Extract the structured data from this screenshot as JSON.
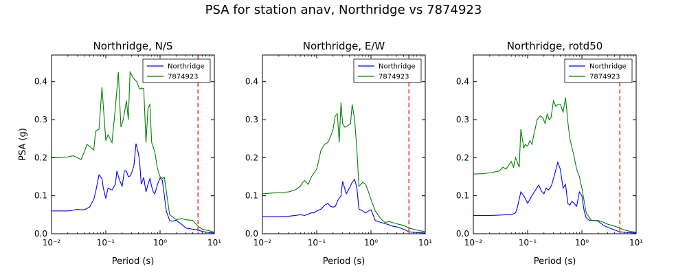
{
  "suptitle": "PSA for station anav, Northridge vs 7874923",
  "colors": {
    "series1": "#0000ff",
    "series2": "#008000",
    "marker": "#ff0000",
    "axes": "#000000"
  },
  "chart_data": [
    {
      "type": "line",
      "title": "Northridge, N/S",
      "xlabel": "Period (s)",
      "ylabel": "PSA (g)",
      "xscale": "log",
      "xlim": [
        0.01,
        10
      ],
      "ylim": [
        0,
        0.47
      ],
      "xticks": [
        0.01,
        0.1,
        1,
        10
      ],
      "xtick_labels": [
        "10⁻²",
        "10⁻¹",
        "10⁰",
        "10¹"
      ],
      "yticks": [
        0.0,
        0.1,
        0.2,
        0.3,
        0.4
      ],
      "ytick_labels": [
        "0.0",
        "0.1",
        "0.2",
        "0.3",
        "0.4"
      ],
      "legend_position": "top-right",
      "vline": {
        "x": 5,
        "style": "dashed",
        "color": "#ff0000"
      },
      "series": [
        {
          "name": "Northridge",
          "color": "#0000ff",
          "x": [
            0.01,
            0.02,
            0.025,
            0.03,
            0.035,
            0.04,
            0.05,
            0.06,
            0.065,
            0.075,
            0.085,
            0.09,
            0.1,
            0.11,
            0.13,
            0.15,
            0.16,
            0.18,
            0.2,
            0.22,
            0.24,
            0.26,
            0.28,
            0.3,
            0.33,
            0.36,
            0.4,
            0.42,
            0.45,
            0.5,
            0.55,
            0.6,
            0.65,
            0.7,
            0.75,
            0.8,
            0.9,
            1.0,
            1.1,
            1.2,
            1.3,
            1.5,
            1.7,
            2.0,
            2.2,
            2.5,
            3.0,
            4.0,
            5.0,
            6.0,
            8.0,
            10.0
          ],
          "y": [
            0.06,
            0.06,
            0.062,
            0.064,
            0.063,
            0.063,
            0.07,
            0.09,
            0.11,
            0.155,
            0.145,
            0.12,
            0.093,
            0.12,
            0.115,
            0.13,
            0.165,
            0.14,
            0.125,
            0.165,
            0.165,
            0.15,
            0.152,
            0.16,
            0.18,
            0.237,
            0.21,
            0.19,
            0.13,
            0.148,
            0.11,
            0.13,
            0.145,
            0.124,
            0.11,
            0.105,
            0.13,
            0.147,
            0.14,
            0.1,
            0.06,
            0.035,
            0.033,
            0.036,
            0.03,
            0.025,
            0.015,
            0.012,
            0.01,
            0.006,
            0.003,
            0.002
          ]
        },
        {
          "name": "7874923",
          "color": "#008000",
          "x": [
            0.01,
            0.015,
            0.02,
            0.025,
            0.03,
            0.035,
            0.04,
            0.045,
            0.05,
            0.06,
            0.065,
            0.075,
            0.085,
            0.1,
            0.11,
            0.13,
            0.15,
            0.17,
            0.19,
            0.21,
            0.24,
            0.26,
            0.28,
            0.32,
            0.37,
            0.42,
            0.45,
            0.5,
            0.55,
            0.6,
            0.65,
            0.7,
            0.8,
            0.9,
            1.0,
            1.1,
            1.2,
            1.5,
            2.0,
            2.5,
            3.0,
            4.0,
            5.0,
            6.0,
            8.0,
            10.0
          ],
          "y": [
            0.2,
            0.2,
            0.202,
            0.205,
            0.2,
            0.195,
            0.215,
            0.235,
            0.23,
            0.22,
            0.27,
            0.275,
            0.385,
            0.245,
            0.26,
            0.24,
            0.33,
            0.425,
            0.28,
            0.3,
            0.35,
            0.3,
            0.425,
            0.41,
            0.4,
            0.38,
            0.383,
            0.382,
            0.24,
            0.33,
            0.34,
            0.24,
            0.215,
            0.17,
            0.15,
            0.145,
            0.148,
            0.05,
            0.037,
            0.04,
            0.037,
            0.035,
            0.02,
            0.012,
            0.008,
            0.004
          ]
        }
      ]
    },
    {
      "type": "line",
      "title": "Northridge, E/W",
      "xlabel": "Period (s)",
      "ylabel": "",
      "xscale": "log",
      "xlim": [
        0.01,
        10
      ],
      "ylim": [
        0,
        0.47
      ],
      "xticks": [
        0.01,
        0.1,
        1,
        10
      ],
      "xtick_labels": [
        "10⁻²",
        "10⁻¹",
        "10⁰",
        "10¹"
      ],
      "yticks": [
        0.0,
        0.1,
        0.2,
        0.3,
        0.4
      ],
      "ytick_labels": [
        "0.0",
        "0.1",
        "0.2",
        "0.3",
        "0.4"
      ],
      "legend_position": "top-right",
      "vline": {
        "x": 5,
        "style": "dashed",
        "color": "#ff0000"
      },
      "series": [
        {
          "name": "Northridge",
          "color": "#0000ff",
          "x": [
            0.01,
            0.02,
            0.03,
            0.04,
            0.05,
            0.06,
            0.07,
            0.08,
            0.09,
            0.1,
            0.12,
            0.14,
            0.16,
            0.18,
            0.2,
            0.22,
            0.25,
            0.28,
            0.3,
            0.35,
            0.4,
            0.45,
            0.5,
            0.55,
            0.6,
            0.7,
            0.8,
            0.9,
            1.0,
            1.2,
            1.5,
            2.0,
            2.5,
            3.0,
            4.0,
            5.0,
            7.0,
            10.0
          ],
          "y": [
            0.045,
            0.045,
            0.046,
            0.048,
            0.05,
            0.048,
            0.052,
            0.055,
            0.055,
            0.06,
            0.065,
            0.075,
            0.08,
            0.072,
            0.07,
            0.072,
            0.09,
            0.1,
            0.138,
            0.105,
            0.12,
            0.135,
            0.143,
            0.12,
            0.065,
            0.06,
            0.055,
            0.06,
            0.063,
            0.035,
            0.03,
            0.025,
            0.02,
            0.018,
            0.012,
            0.005,
            0.003,
            0.002
          ]
        },
        {
          "name": "7874923",
          "color": "#008000",
          "x": [
            0.01,
            0.015,
            0.02,
            0.03,
            0.04,
            0.05,
            0.055,
            0.06,
            0.07,
            0.08,
            0.1,
            0.12,
            0.14,
            0.16,
            0.18,
            0.2,
            0.22,
            0.24,
            0.26,
            0.28,
            0.3,
            0.33,
            0.38,
            0.42,
            0.45,
            0.5,
            0.55,
            0.6,
            0.65,
            0.7,
            0.8,
            0.9,
            1.0,
            1.2,
            1.5,
            1.8,
            2.2,
            2.7,
            3.2,
            4.0,
            5.0,
            6.0,
            8.0,
            10.0
          ],
          "y": [
            0.105,
            0.107,
            0.108,
            0.11,
            0.115,
            0.125,
            0.135,
            0.14,
            0.13,
            0.15,
            0.17,
            0.22,
            0.235,
            0.24,
            0.255,
            0.275,
            0.31,
            0.315,
            0.24,
            0.345,
            0.29,
            0.28,
            0.285,
            0.29,
            0.34,
            0.3,
            0.22,
            0.125,
            0.13,
            0.135,
            0.13,
            0.11,
            0.09,
            0.06,
            0.04,
            0.03,
            0.032,
            0.028,
            0.025,
            0.022,
            0.015,
            0.012,
            0.008,
            0.005
          ]
        }
      ]
    },
    {
      "type": "line",
      "title": "Northridge, rotd50",
      "xlabel": "Period (s)",
      "ylabel": "",
      "xscale": "log",
      "xlim": [
        0.01,
        10
      ],
      "ylim": [
        0,
        0.47
      ],
      "xticks": [
        0.01,
        0.1,
        1,
        10
      ],
      "xtick_labels": [
        "10⁻²",
        "10⁻¹",
        "10⁰",
        "10¹"
      ],
      "yticks": [
        0.0,
        0.1,
        0.2,
        0.3,
        0.4
      ],
      "ytick_labels": [
        "0.0",
        "0.1",
        "0.2",
        "0.3",
        "0.4"
      ],
      "legend_position": "top-right",
      "vline": {
        "x": 5,
        "style": "dashed",
        "color": "#ff0000"
      },
      "series": [
        {
          "name": "Northridge",
          "color": "#0000ff",
          "x": [
            0.01,
            0.02,
            0.03,
            0.04,
            0.05,
            0.06,
            0.065,
            0.075,
            0.085,
            0.1,
            0.12,
            0.14,
            0.16,
            0.18,
            0.2,
            0.22,
            0.24,
            0.26,
            0.28,
            0.32,
            0.36,
            0.4,
            0.45,
            0.5,
            0.55,
            0.6,
            0.65,
            0.7,
            0.8,
            0.9,
            1.0,
            1.1,
            1.2,
            1.4,
            1.7,
            2.0,
            2.5,
            3.0,
            4.0,
            5.0,
            7.0,
            10.0
          ],
          "y": [
            0.048,
            0.048,
            0.049,
            0.05,
            0.05,
            0.055,
            0.07,
            0.11,
            0.1,
            0.08,
            0.1,
            0.115,
            0.128,
            0.112,
            0.105,
            0.12,
            0.115,
            0.12,
            0.13,
            0.16,
            0.188,
            0.17,
            0.12,
            0.13,
            0.08,
            0.075,
            0.085,
            0.082,
            0.072,
            0.11,
            0.1,
            0.06,
            0.042,
            0.035,
            0.035,
            0.033,
            0.022,
            0.017,
            0.01,
            0.005,
            0.003,
            0.002
          ]
        },
        {
          "name": "7874923",
          "color": "#008000",
          "x": [
            0.01,
            0.015,
            0.02,
            0.03,
            0.035,
            0.04,
            0.05,
            0.055,
            0.06,
            0.07,
            0.075,
            0.085,
            0.09,
            0.1,
            0.11,
            0.12,
            0.13,
            0.15,
            0.17,
            0.19,
            0.21,
            0.23,
            0.25,
            0.27,
            0.3,
            0.33,
            0.36,
            0.4,
            0.45,
            0.5,
            0.55,
            0.6,
            0.7,
            0.8,
            0.9,
            1.0,
            1.2,
            1.5,
            2.0,
            2.5,
            3.0,
            4.0,
            5.0,
            6.0,
            8.0,
            10.0
          ],
          "y": [
            0.157,
            0.158,
            0.16,
            0.165,
            0.175,
            0.17,
            0.19,
            0.175,
            0.2,
            0.175,
            0.275,
            0.225,
            0.235,
            0.23,
            0.245,
            0.235,
            0.26,
            0.3,
            0.31,
            0.305,
            0.29,
            0.315,
            0.3,
            0.305,
            0.35,
            0.335,
            0.34,
            0.34,
            0.32,
            0.358,
            0.295,
            0.25,
            0.21,
            0.17,
            0.15,
            0.12,
            0.055,
            0.035,
            0.035,
            0.03,
            0.025,
            0.02,
            0.015,
            0.01,
            0.006,
            0.004
          ]
        }
      ]
    }
  ]
}
